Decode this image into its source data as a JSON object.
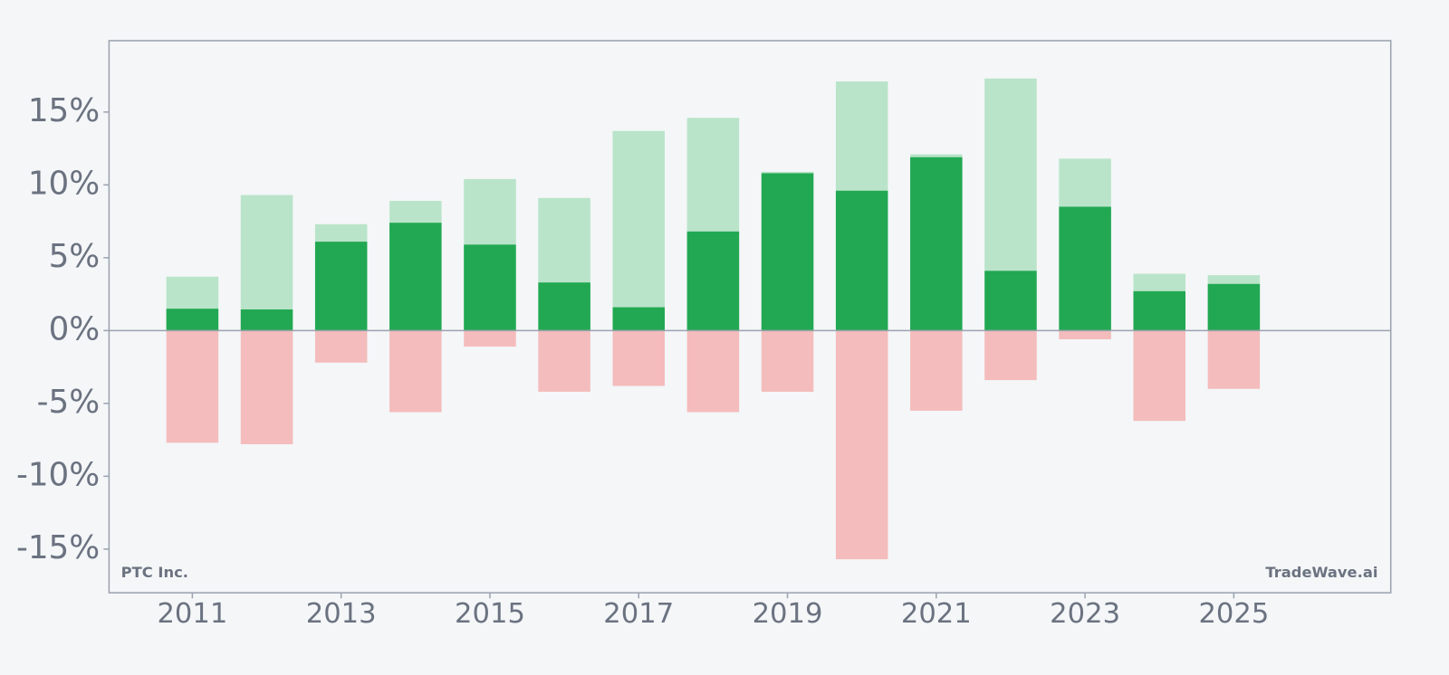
{
  "chart_data": {
    "type": "bar",
    "x": [
      2011,
      2012,
      2013,
      2014,
      2015,
      2016,
      2017,
      2018,
      2019,
      2020,
      2021,
      2022,
      2023,
      2024,
      2025
    ],
    "series": [
      {
        "color": "#b9e4c9",
        "values": [
          3.7,
          9.3,
          7.3,
          8.9,
          10.4,
          9.1,
          13.7,
          14.6,
          10.9,
          17.1,
          12.1,
          17.3,
          11.8,
          3.9,
          3.8
        ]
      },
      {
        "color": "#22a852",
        "values": [
          1.5,
          1.45,
          6.1,
          7.4,
          5.9,
          3.3,
          1.6,
          6.8,
          10.8,
          9.6,
          11.9,
          4.1,
          8.5,
          2.7,
          3.2
        ]
      },
      {
        "color": "#f4bcbc",
        "values": [
          -7.7,
          -7.8,
          -2.2,
          -5.6,
          -1.1,
          -4.2,
          -3.8,
          -5.6,
          -4.2,
          -15.7,
          -5.5,
          -3.4,
          -0.6,
          -6.2,
          -4.0
        ]
      }
    ],
    "xlim": [
      2009.88,
      2027.11
    ],
    "xticks": [
      2011,
      2013,
      2015,
      2017,
      2019,
      2021,
      2023,
      2025
    ],
    "ylim": [
      -18,
      19.9
    ],
    "yticks": [
      {
        "value": -15,
        "label": "-15%"
      },
      {
        "value": -10,
        "label": "-10%"
      },
      {
        "value": -5,
        "label": "-5%"
      },
      {
        "value": 0,
        "label": "0%"
      },
      {
        "value": 5,
        "label": "5%"
      },
      {
        "value": 10,
        "label": "10%"
      },
      {
        "value": 15,
        "label": "15%"
      }
    ],
    "annotations": [
      "PTC Inc.",
      "TradeWave.ai"
    ]
  }
}
